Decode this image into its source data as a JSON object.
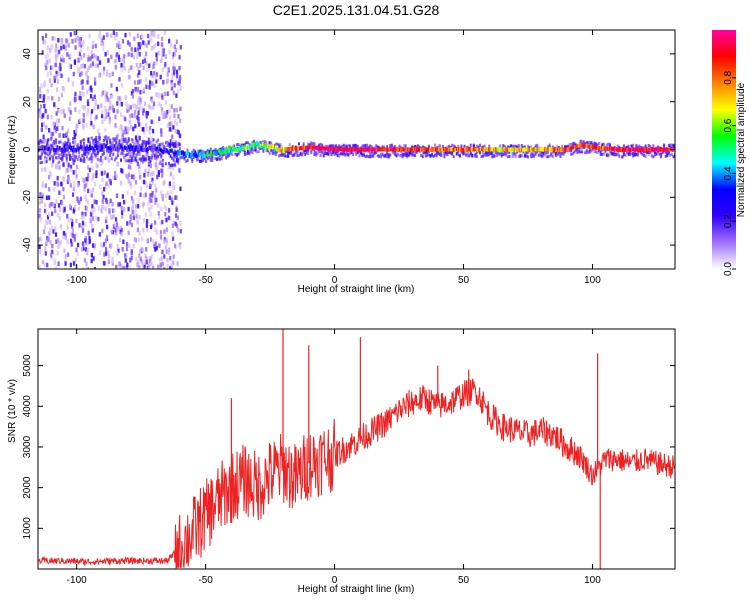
{
  "figure": {
    "title": "C2E1.2025.131.04.51.G28"
  },
  "chart_data": [
    {
      "type": "heatmap",
      "xlabel": "Height of straight line (km)",
      "ylabel": "Frequency (Hz)",
      "xlim": [
        -115,
        132
      ],
      "ylim": [
        -50,
        50
      ],
      "xticks": [
        -100,
        -50,
        0,
        50,
        100
      ],
      "yticks": [
        -40,
        -20,
        0,
        20,
        40
      ],
      "colorbar": {
        "label": "Normalized spectral amplitude",
        "range": [
          0,
          1
        ],
        "ticks": [
          0.0,
          0.2,
          0.4,
          0.6,
          0.8
        ],
        "colors": [
          "#ffffff",
          "#a070ff",
          "#3000ff",
          "#0000ff",
          "#00ffff",
          "#00ff00",
          "#ffff00",
          "#ff8000",
          "#ff0000",
          "#ff00a0"
        ]
      },
      "ridge": {
        "x": [
          -115,
          -90,
          -70,
          -60,
          -50,
          -40,
          -30,
          -20,
          -10,
          0,
          20,
          40,
          60,
          80,
          90,
          95,
          100,
          110,
          132
        ],
        "freq": [
          0,
          1,
          0,
          -2,
          -2,
          0,
          2,
          0,
          1,
          0,
          0,
          0,
          0,
          0,
          0,
          2,
          1,
          0,
          0
        ],
        "amplitude": [
          0.2,
          0.2,
          0.2,
          0.35,
          0.45,
          0.55,
          0.55,
          0.7,
          0.9,
          0.95,
          0.9,
          0.8,
          0.75,
          0.7,
          0.9,
          0.85,
          0.8,
          0.9,
          0.95
        ]
      }
    },
    {
      "type": "line",
      "xlabel": "Height of straight line (km)",
      "ylabel": "SNR (10 * v/v)",
      "xlim": [
        -115,
        132
      ],
      "ylim": [
        0,
        5900
      ],
      "xticks": [
        -100,
        -50,
        0,
        50,
        100
      ],
      "yticks": [
        1000,
        2000,
        3000,
        4000,
        5000
      ],
      "color": "#ee2222",
      "series": [
        {
          "x": [
            -115,
            -105,
            -95,
            -85,
            -75,
            -65,
            -60,
            -55,
            -50,
            -45,
            -40,
            -35,
            -30,
            -25,
            -20,
            -15,
            -10,
            -5,
            0,
            5,
            10,
            15,
            20,
            25,
            30,
            35,
            40,
            45,
            50,
            55,
            60,
            65,
            70,
            75,
            80,
            85,
            90,
            95,
            100,
            105,
            110,
            115,
            120,
            125,
            132
          ],
          "values": [
            200,
            200,
            180,
            200,
            200,
            200,
            500,
            900,
            1300,
            1700,
            2000,
            2200,
            2000,
            2300,
            2500,
            2200,
            2600,
            2700,
            2800,
            3000,
            3200,
            3400,
            3600,
            3900,
            4100,
            4200,
            4000,
            4100,
            4300,
            4400,
            3800,
            3500,
            3400,
            3300,
            3400,
            3300,
            3000,
            2800,
            2300,
            2700,
            2700,
            2600,
            2700,
            2600,
            2500
          ]
        }
      ],
      "spikes": {
        "x": [
          -40,
          -20,
          -10,
          10,
          40,
          52,
          102
        ],
        "values": [
          4200,
          5900,
          5500,
          5700,
          5000,
          4900,
          5300
        ]
      }
    }
  ]
}
